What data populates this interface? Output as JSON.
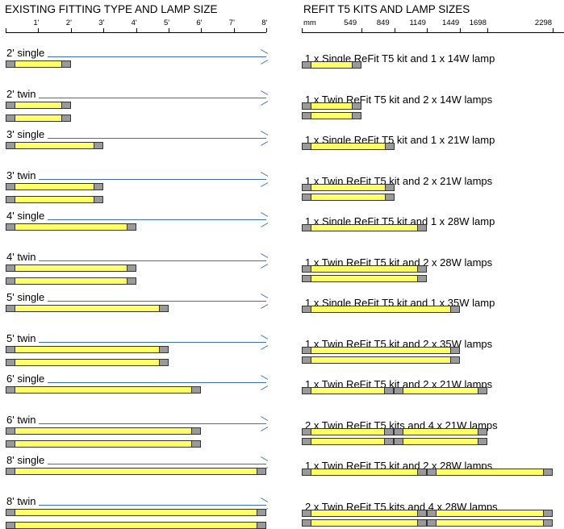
{
  "left_header": "EXISTING FITTING TYPE AND LAMP SIZE",
  "right_header": "REFIT T5 KITS AND LAMP SIZES",
  "left_ticks": [
    "1'",
    "2'",
    "3'",
    "4'",
    "5'",
    "6'",
    "7'",
    "8'"
  ],
  "right_unit": "mm",
  "right_ticks": [
    "549",
    "849",
    "1149",
    "1449",
    "1698",
    "2298"
  ],
  "rows": [
    {
      "fitting": "2' single",
      "lamps": 1,
      "length_ft": 2,
      "kit": "1 x Single ReFit T5 kit and 1 x 14W lamp",
      "kit_lamps": 1,
      "kit_mm": 549,
      "segments": 1
    },
    {
      "fitting": "2' twin",
      "lamps": 2,
      "length_ft": 2,
      "kit": "1 x Twin ReFit T5 kit and 2 x 14W lamps",
      "kit_lamps": 2,
      "kit_mm": 549,
      "segments": 1
    },
    {
      "fitting": "3' single",
      "lamps": 1,
      "length_ft": 3,
      "kit": "1 x Single ReFit T5 kit and 1 x 21W lamp",
      "kit_lamps": 1,
      "kit_mm": 849,
      "segments": 1
    },
    {
      "fitting": "3' twin",
      "lamps": 2,
      "length_ft": 3,
      "kit": "1 x Twin ReFit T5 kit and 2 x 21W lamps",
      "kit_lamps": 2,
      "kit_mm": 849,
      "segments": 1
    },
    {
      "fitting": "4' single",
      "lamps": 1,
      "length_ft": 4,
      "kit": "1 x Single ReFit T5 kit and 1 x 28W lamp",
      "kit_lamps": 1,
      "kit_mm": 1149,
      "segments": 1
    },
    {
      "fitting": "4' twin",
      "lamps": 2,
      "length_ft": 4,
      "kit": "1 x Twin ReFit T5 kit and 2 x 28W lamps",
      "kit_lamps": 2,
      "kit_mm": 1149,
      "segments": 1
    },
    {
      "fitting": "5' single",
      "lamps": 1,
      "length_ft": 5,
      "kit": "1 x Single ReFit T5 kit and 1 x 35W lamp",
      "kit_lamps": 1,
      "kit_mm": 1449,
      "segments": 1
    },
    {
      "fitting": "5' twin",
      "lamps": 2,
      "length_ft": 5,
      "kit": "1 x Twin ReFit T5 kit and 2 x 35W lamps",
      "kit_lamps": 2,
      "kit_mm": 1449,
      "segments": 1
    },
    {
      "fitting": "6' single",
      "lamps": 1,
      "length_ft": 6,
      "kit": "1 x Twin ReFit T5 kit and 2 x 21W lamps",
      "kit_lamps": 1,
      "kit_mm": 1698,
      "segments": 2
    },
    {
      "fitting": "6' twin",
      "lamps": 2,
      "length_ft": 6,
      "kit": "2 x Twin ReFit T5 kits and 4 x 21W lamps",
      "kit_lamps": 2,
      "kit_mm": 1698,
      "segments": 2
    },
    {
      "fitting": "8' single",
      "lamps": 1,
      "length_ft": 8,
      "kit": "1 x Twin ReFit T5 kit and 2 x 28W lamps",
      "kit_lamps": 1,
      "kit_mm": 2298,
      "segments": 2
    },
    {
      "fitting": "8' twin",
      "lamps": 2,
      "length_ft": 8,
      "kit": "2 x Twin ReFit T5 kits and 4 x 28W lamps",
      "kit_lamps": 2,
      "kit_mm": 2298,
      "segments": 2
    }
  ],
  "colors": {
    "lamp_fill": "#ffff66",
    "cap_fill": "#9a9a9a",
    "arrow": "#3a6fb5",
    "outline": "#333333"
  }
}
